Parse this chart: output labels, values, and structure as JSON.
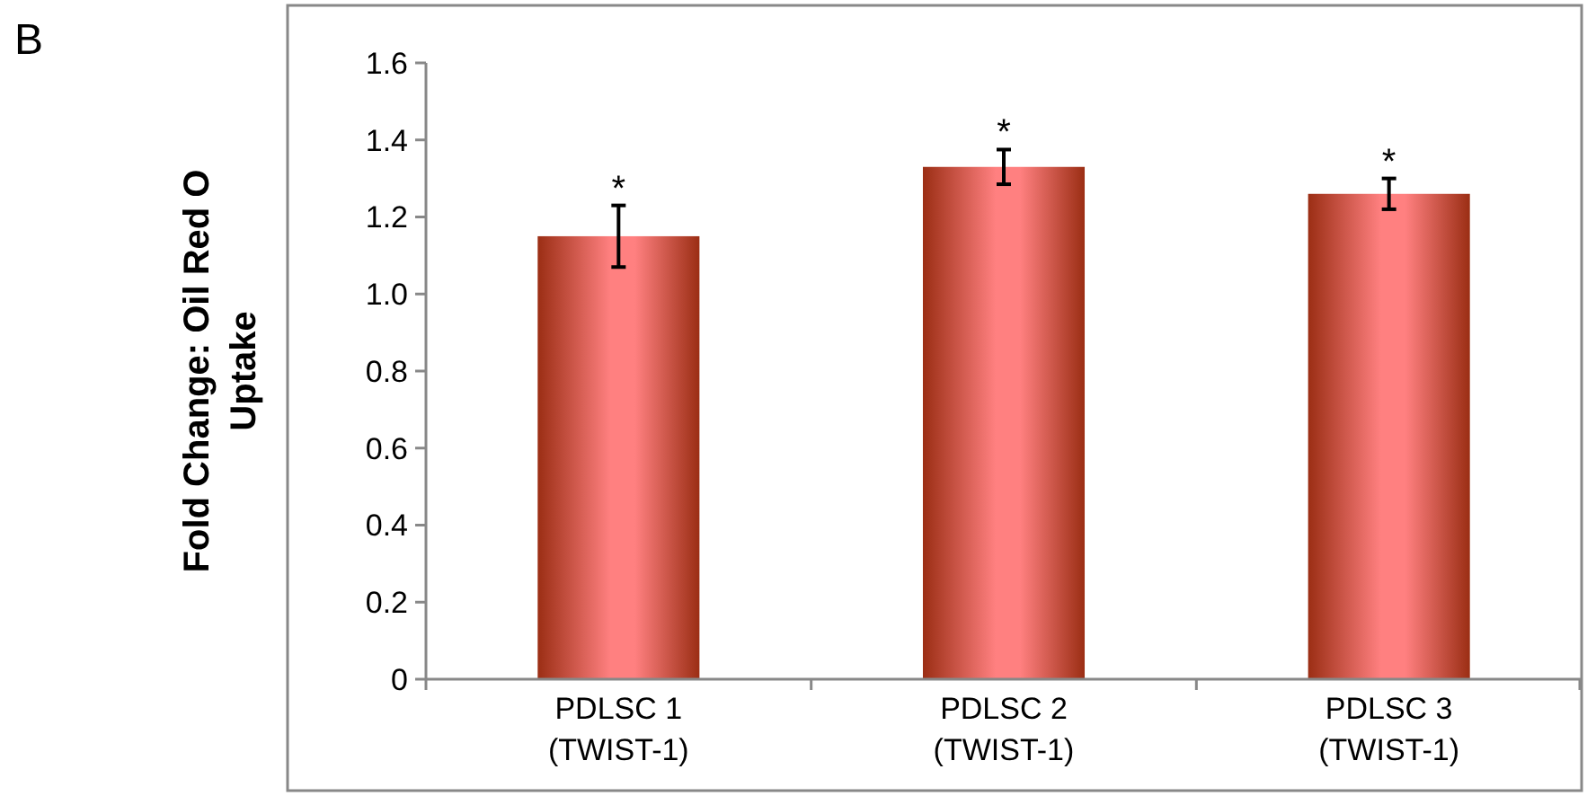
{
  "chart_data": {
    "type": "bar",
    "ylabel": "Fold Change: Oil Red O\nUptake",
    "categories": [
      "PDLSC 1\n(TWIST-1)",
      "PDLSC 2\n(TWIST-1)",
      "PDLSC 3\n(TWIST-1)"
    ],
    "values": [
      1.15,
      1.33,
      1.26
    ],
    "errors": [
      0.08,
      0.045,
      0.04
    ],
    "color": "#ff8080",
    "ylim": [
      0,
      1.6
    ],
    "yticks": [
      0,
      {
        "value": 0.2,
        "label": "0.2"
      },
      {
        "value": 0.4,
        "label": "0.4"
      },
      {
        "value": 0.6,
        "label": "0.6"
      },
      {
        "value": 0.8,
        "label": "0.8"
      },
      {
        "value": 1,
        "label": "1.0"
      },
      {
        "value": 1.2,
        "label": "1.2"
      },
      {
        "value": 1.4,
        "label": "1.4"
      },
      {
        "value": 1.6,
        "label": "1.6"
      }
    ],
    "grid": false,
    "annotations": [
      "B",
      {
        "text": "*",
        "x": "PDLSC 1\n(TWIST-1)",
        "y": 1.23
      },
      {
        "text": "*",
        "x": "PDLSC 2\n(TWIST-1)",
        "y": 1.375
      },
      {
        "text": "*",
        "x": "PDLSC 3\n(TWIST-1)",
        "y": 1.3
      }
    ]
  }
}
